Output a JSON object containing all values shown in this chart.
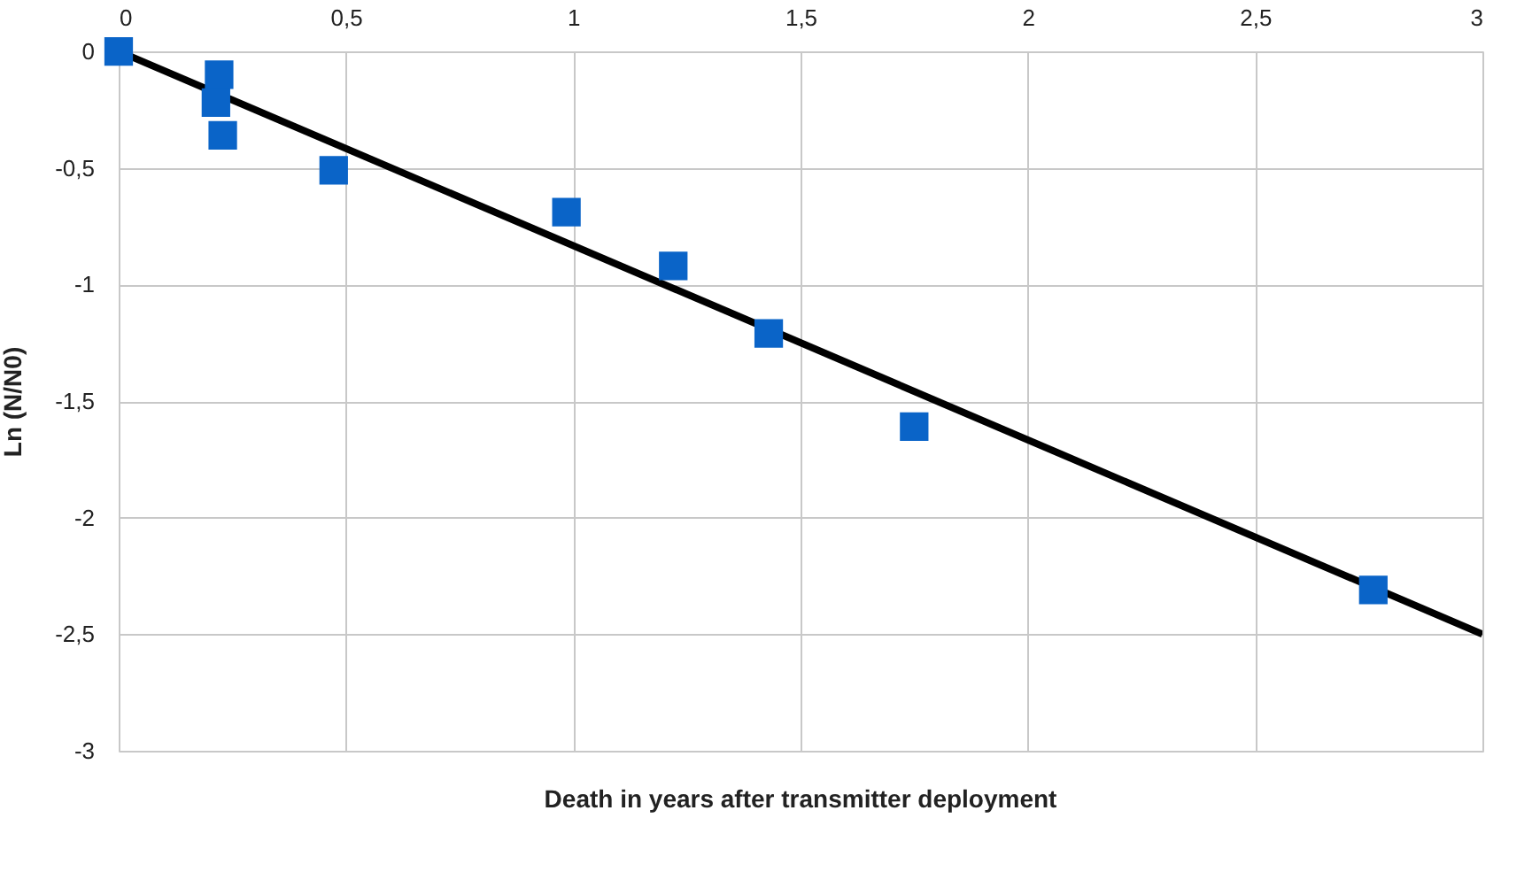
{
  "chart_data": {
    "type": "scatter",
    "xlabel": "Death in years after transmitter deployment",
    "ylabel": "Ln (N/N0)",
    "series": [
      {
        "color": "#0a64c8",
        "marker": "square",
        "x": [
          0,
          0.221,
          0.214,
          0.229,
          0.473,
          0.985,
          1.22,
          1.43,
          1.75,
          2.76
        ],
        "values": [
          0,
          -0.1,
          -0.22,
          -0.36,
          -0.51,
          -0.69,
          -0.92,
          -1.21,
          -1.61,
          -2.31
        ]
      },
      {
        "type": "line",
        "color": "#000000",
        "marker": "none",
        "x": [
          0,
          3
        ],
        "values": [
          0,
          -2.5
        ]
      }
    ],
    "xlim": [
      0,
      3
    ],
    "ylim": [
      -3,
      0
    ],
    "xticks": [
      0,
      {
        "value": 0.5,
        "label": "0,5"
      },
      1,
      {
        "value": 1.5,
        "label": "1,5"
      },
      2,
      {
        "value": 2.5,
        "label": "2,5"
      },
      3
    ],
    "yticks": [
      0,
      {
        "value": -0.5,
        "label": "-0,5"
      },
      -1,
      {
        "value": -1.5,
        "label": "-1,5"
      },
      -2,
      {
        "value": -2.5,
        "label": "-2,5"
      },
      -3
    ],
    "grid": true
  }
}
